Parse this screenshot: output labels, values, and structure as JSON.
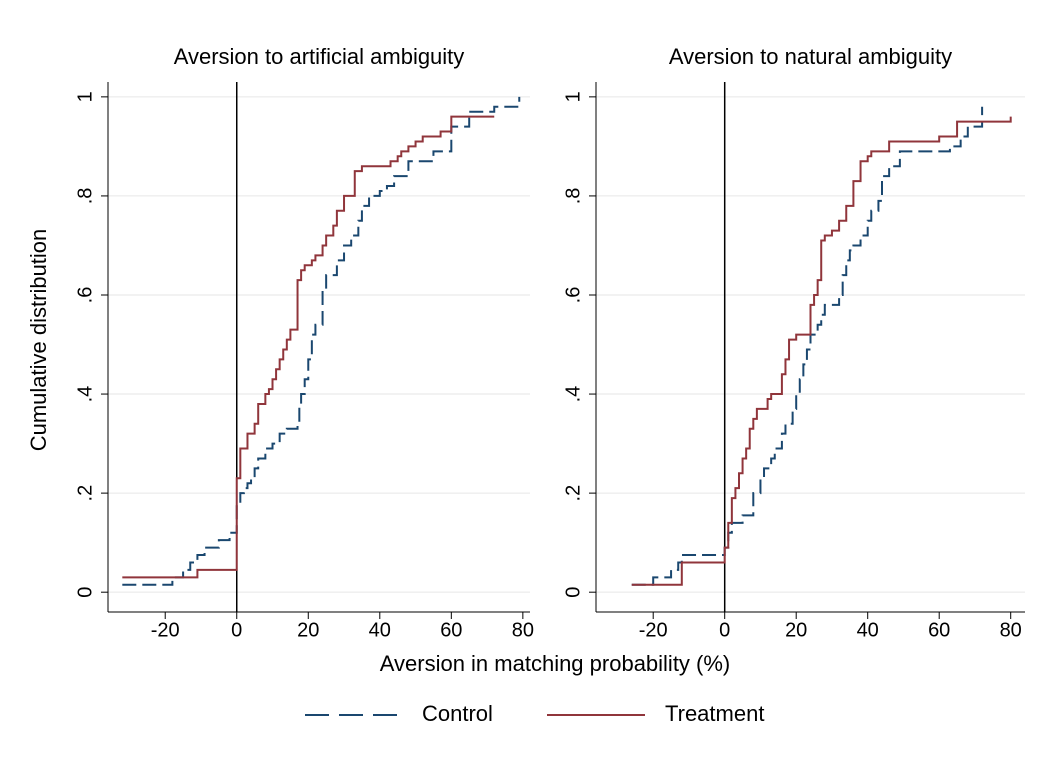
{
  "xlabel": "Aversion in matching probability (%)",
  "ylabel": "Cumulative distribution",
  "chart_data": [
    {
      "type": "line",
      "step": true,
      "title": "Aversion to artificial ambiguity",
      "xlim": [
        -36,
        82
      ],
      "ylim": [
        -0.04,
        1.03
      ],
      "xticks": [
        -20,
        0,
        20,
        40,
        60,
        80
      ],
      "yticks": [
        0,
        {
          "value": 0.2,
          "label": ".2"
        },
        {
          "value": 0.4,
          "label": ".4"
        },
        {
          "value": 0.6,
          "label": ".6"
        },
        {
          "value": 0.8,
          "label": ".8"
        },
        1
      ],
      "grid": true,
      "reference_line_x": 0,
      "series": [
        {
          "name": "Control",
          "color": "#1a476f",
          "dashed": true,
          "x": [
            -32,
            -18,
            -15,
            -13,
            -11,
            -9,
            -5,
            -2,
            0,
            1,
            2,
            3,
            4,
            5,
            6,
            8,
            10,
            12,
            14,
            17,
            17.5,
            18,
            19,
            20,
            21,
            22,
            24,
            25,
            28,
            30,
            32,
            34,
            35,
            37,
            40,
            42,
            44,
            48,
            55,
            60,
            65,
            72,
            79
          ],
          "values": [
            0.015,
            0.03,
            0.045,
            0.06,
            0.075,
            0.09,
            0.105,
            0.12,
            0.18,
            0.2,
            0.21,
            0.22,
            0.23,
            0.25,
            0.27,
            0.29,
            0.3,
            0.32,
            0.33,
            0.34,
            0.38,
            0.4,
            0.43,
            0.47,
            0.52,
            0.54,
            0.61,
            0.64,
            0.67,
            0.7,
            0.72,
            0.75,
            0.78,
            0.8,
            0.81,
            0.82,
            0.84,
            0.87,
            0.89,
            0.94,
            0.97,
            0.98,
            1.0
          ]
        },
        {
          "name": "Treatment",
          "color": "#90353b",
          "dashed": false,
          "x": [
            -32,
            -11,
            0,
            1,
            3,
            5,
            6,
            8,
            9,
            10,
            11,
            12,
            13,
            14,
            15,
            17,
            18,
            19,
            21,
            22,
            24,
            25,
            27,
            28,
            30,
            33,
            35,
            43,
            45,
            46,
            48,
            50,
            52,
            57,
            60,
            72
          ],
          "values": [
            0.03,
            0.045,
            0.23,
            0.29,
            0.32,
            0.34,
            0.38,
            0.4,
            0.41,
            0.43,
            0.45,
            0.47,
            0.49,
            0.51,
            0.53,
            0.63,
            0.65,
            0.66,
            0.67,
            0.68,
            0.7,
            0.72,
            0.74,
            0.77,
            0.8,
            0.85,
            0.86,
            0.87,
            0.88,
            0.89,
            0.9,
            0.91,
            0.92,
            0.93,
            0.96,
            0.96
          ]
        }
      ]
    },
    {
      "type": "line",
      "step": true,
      "title": "Aversion to natural ambiguity",
      "xlim": [
        -36,
        84
      ],
      "ylim": [
        -0.04,
        1.03
      ],
      "xticks": [
        -20,
        0,
        20,
        40,
        60,
        80
      ],
      "yticks": [
        0,
        {
          "value": 0.2,
          "label": ".2"
        },
        {
          "value": 0.4,
          "label": ".4"
        },
        {
          "value": 0.6,
          "label": ".6"
        },
        {
          "value": 0.8,
          "label": ".8"
        },
        1
      ],
      "grid": true,
      "reference_line_x": 0,
      "series": [
        {
          "name": "Control",
          "color": "#1a476f",
          "dashed": true,
          "x": [
            -26,
            -20,
            -15,
            -13,
            -12,
            0,
            1,
            2,
            5,
            8,
            10,
            11,
            13,
            14,
            16,
            17,
            19,
            20,
            21,
            22,
            23,
            24,
            26,
            27,
            28,
            32,
            33,
            34,
            35,
            36,
            38,
            40,
            41,
            43,
            44,
            46,
            49,
            63,
            66,
            68,
            72
          ],
          "values": [
            0.015,
            0.03,
            0.045,
            0.06,
            0.075,
            0.09,
            0.12,
            0.14,
            0.155,
            0.2,
            0.23,
            0.25,
            0.27,
            0.29,
            0.32,
            0.34,
            0.37,
            0.4,
            0.43,
            0.46,
            0.49,
            0.52,
            0.54,
            0.56,
            0.58,
            0.6,
            0.64,
            0.67,
            0.69,
            0.7,
            0.72,
            0.75,
            0.77,
            0.79,
            0.84,
            0.86,
            0.89,
            0.9,
            0.92,
            0.94,
            0.98
          ]
        },
        {
          "name": "Treatment",
          "color": "#90353b",
          "dashed": false,
          "x": [
            -26,
            -12,
            0,
            1,
            2,
            3,
            4,
            5,
            6,
            7,
            8,
            9,
            12,
            13,
            16,
            17,
            18,
            20,
            24,
            25,
            26,
            27,
            28,
            30,
            32,
            34,
            36,
            38,
            40,
            41,
            46,
            60,
            65,
            80
          ],
          "values": [
            0.015,
            0.06,
            0.09,
            0.14,
            0.19,
            0.21,
            0.24,
            0.27,
            0.29,
            0.33,
            0.35,
            0.37,
            0.39,
            0.4,
            0.44,
            0.47,
            0.51,
            0.52,
            0.58,
            0.6,
            0.63,
            0.71,
            0.72,
            0.73,
            0.75,
            0.78,
            0.83,
            0.87,
            0.88,
            0.89,
            0.91,
            0.92,
            0.95,
            0.96
          ]
        }
      ]
    }
  ]
}
